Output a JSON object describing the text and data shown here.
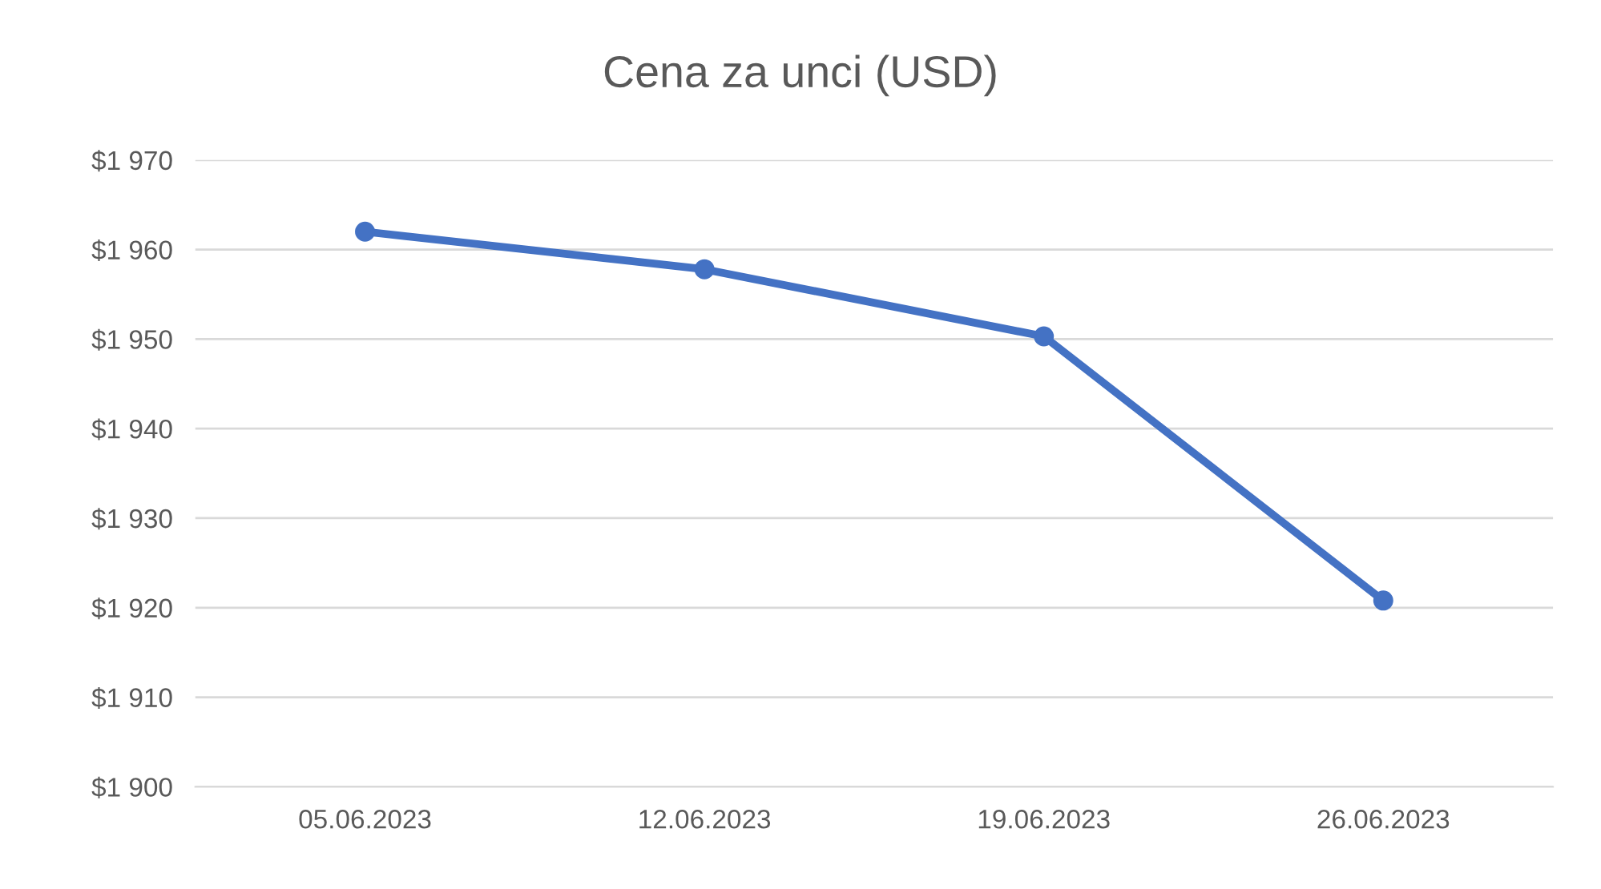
{
  "chart_data": {
    "type": "line",
    "title": "Cena za unci (USD)",
    "categories": [
      "05.06.2023",
      "12.06.2023",
      "19.06.2023",
      "26.06.2023"
    ],
    "series": [
      {
        "color": "#4472c4",
        "values": [
          1962,
          1957.8,
          1950.3,
          1920.8
        ]
      }
    ],
    "ylim": [
      1900,
      1970
    ],
    "yticks": [
      {
        "value": 1900,
        "label": "$1 900"
      },
      {
        "value": 1910,
        "label": "$1 910"
      },
      {
        "value": 1920,
        "label": "$1 920"
      },
      {
        "value": 1930,
        "label": "$1 930"
      },
      {
        "value": 1940,
        "label": "$1 940"
      },
      {
        "value": 1950,
        "label": "$1 950"
      },
      {
        "value": 1960,
        "label": "$1 960"
      },
      {
        "value": 1970,
        "label": "$1 970"
      }
    ],
    "grid": "y",
    "marker": "circle",
    "line_style": "solid"
  }
}
